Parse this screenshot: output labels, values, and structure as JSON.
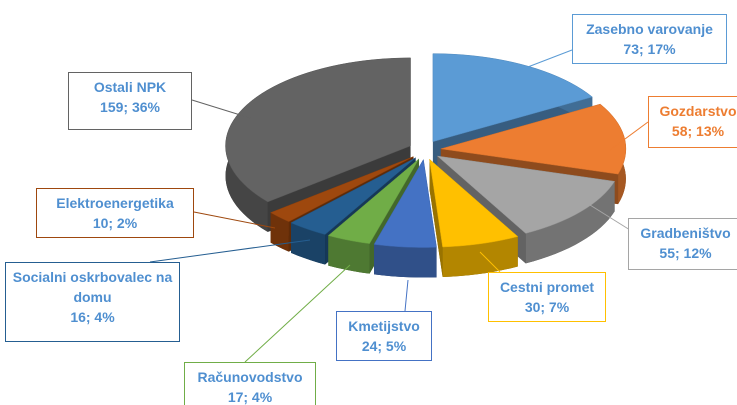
{
  "chart_data": {
    "type": "pie",
    "categories": [
      "Zasebno varovanje",
      "Gozdarstvo",
      "Gradbeništvo",
      "Cestni promet",
      "Kmetijstvo",
      "Računovodstvo",
      "Socialni oskrbovalec na domu",
      "Elektroenergetika",
      "Ostali NPK"
    ],
    "values": [
      73,
      58,
      55,
      30,
      24,
      17,
      16,
      10,
      159
    ],
    "value_labels": [
      "73; 17%",
      "58; 13%",
      "55; 12%",
      "30; 7%",
      "24; 5%",
      "17; 4%",
      "16; 4%",
      "10; 2%",
      "159; 36%"
    ],
    "colors": [
      "#5b9bd5",
      "#ed7d31",
      "#a5a5a5",
      "#ffc000",
      "#4472c4",
      "#70ad47",
      "#255e91",
      "#9e480e",
      "#636363"
    ]
  }
}
